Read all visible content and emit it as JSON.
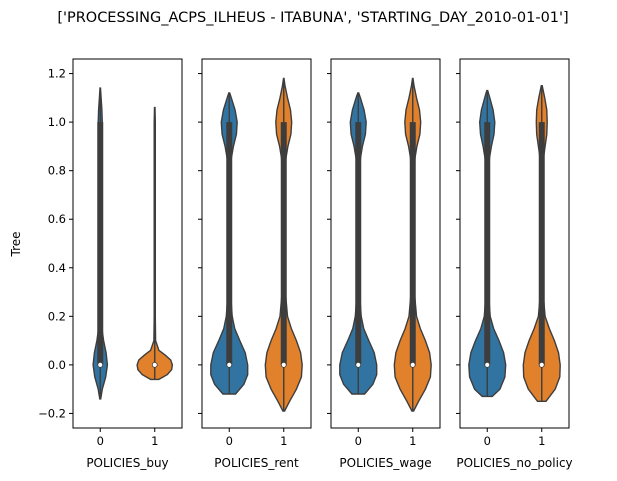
{
  "chart_data": {
    "type": "violin",
    "title": "['PROCESSING_ACPS_ILHEUS - ITABUNA', 'STARTING_DAY_2010-01-01']",
    "ylabel": "Tree",
    "ylim": [
      -0.26,
      1.26
    ],
    "yticks": [
      -0.2,
      0.0,
      0.2,
      0.4,
      0.6,
      0.8,
      1.0,
      1.2
    ],
    "ytick_labels": [
      "−0.2",
      "0.0",
      "0.2",
      "0.4",
      "0.6",
      "0.8",
      "1.0",
      "1.2"
    ],
    "categories": [
      "0",
      "1"
    ],
    "colors": [
      "#3274a1",
      "#e1812c"
    ],
    "panels": [
      {
        "xlabel": "POLICIES_buy",
        "violins": [
          {
            "category": "0",
            "min": -0.14,
            "max": 1.14,
            "median": 0.0,
            "q1": 0.0,
            "q3": 1.0,
            "density": [
              [
                -0.14,
                0.01
              ],
              [
                -0.1,
                0.05
              ],
              [
                -0.05,
                0.13
              ],
              [
                0.0,
                0.17
              ],
              [
                0.05,
                0.14
              ],
              [
                0.1,
                0.08
              ],
              [
                0.15,
                0.04
              ],
              [
                0.2,
                0.03
              ],
              [
                0.3,
                0.02
              ],
              [
                0.5,
                0.015
              ],
              [
                0.7,
                0.015
              ],
              [
                0.85,
                0.02
              ],
              [
                0.95,
                0.04
              ],
              [
                1.0,
                0.05
              ],
              [
                1.05,
                0.04
              ],
              [
                1.1,
                0.02
              ],
              [
                1.14,
                0.005
              ]
            ]
          },
          {
            "category": "1",
            "min": -0.06,
            "max": 1.06,
            "median": 0.0,
            "q1": 0.0,
            "q3": 0.0,
            "density": [
              [
                -0.06,
                0.1
              ],
              [
                -0.04,
                0.3
              ],
              [
                -0.02,
                0.4
              ],
              [
                0.0,
                0.42
              ],
              [
                0.02,
                0.38
              ],
              [
                0.04,
                0.25
              ],
              [
                0.06,
                0.1
              ],
              [
                0.1,
                0.02
              ],
              [
                0.2,
                0.012
              ],
              [
                0.5,
                0.012
              ],
              [
                0.8,
                0.012
              ],
              [
                1.0,
                0.014
              ],
              [
                1.06,
                0.005
              ]
            ]
          }
        ]
      },
      {
        "xlabel": "POLICIES_rent",
        "violins": [
          {
            "category": "0",
            "min": -0.12,
            "max": 1.12,
            "median": 0.0,
            "q1": 0.0,
            "q3": 1.0,
            "density": [
              [
                -0.12,
                0.15
              ],
              [
                -0.08,
                0.35
              ],
              [
                -0.04,
                0.44
              ],
              [
                0.0,
                0.44
              ],
              [
                0.05,
                0.38
              ],
              [
                0.1,
                0.25
              ],
              [
                0.15,
                0.13
              ],
              [
                0.2,
                0.07
              ],
              [
                0.3,
                0.03
              ],
              [
                0.5,
                0.02
              ],
              [
                0.7,
                0.02
              ],
              [
                0.85,
                0.05
              ],
              [
                0.9,
                0.1
              ],
              [
                0.95,
                0.17
              ],
              [
                1.0,
                0.19
              ],
              [
                1.05,
                0.14
              ],
              [
                1.1,
                0.05
              ],
              [
                1.12,
                0.01
              ]
            ]
          },
          {
            "category": "1",
            "min": -0.19,
            "max": 1.18,
            "median": 0.0,
            "q1": 0.0,
            "q3": 1.0,
            "density": [
              [
                -0.19,
                0.02
              ],
              [
                -0.15,
                0.14
              ],
              [
                -0.1,
                0.3
              ],
              [
                -0.05,
                0.42
              ],
              [
                0.0,
                0.44
              ],
              [
                0.05,
                0.4
              ],
              [
                0.1,
                0.3
              ],
              [
                0.15,
                0.18
              ],
              [
                0.2,
                0.09
              ],
              [
                0.3,
                0.04
              ],
              [
                0.5,
                0.03
              ],
              [
                0.7,
                0.03
              ],
              [
                0.85,
                0.05
              ],
              [
                0.9,
                0.1
              ],
              [
                0.95,
                0.17
              ],
              [
                1.0,
                0.19
              ],
              [
                1.05,
                0.16
              ],
              [
                1.1,
                0.09
              ],
              [
                1.15,
                0.03
              ],
              [
                1.18,
                0.005
              ]
            ]
          }
        ]
      },
      {
        "xlabel": "POLICIES_wage",
        "violins": [
          {
            "category": "0",
            "min": -0.12,
            "max": 1.12,
            "median": 0.0,
            "q1": 0.0,
            "q3": 1.0,
            "density": [
              [
                -0.12,
                0.15
              ],
              [
                -0.08,
                0.35
              ],
              [
                -0.04,
                0.44
              ],
              [
                0.0,
                0.44
              ],
              [
                0.05,
                0.38
              ],
              [
                0.1,
                0.25
              ],
              [
                0.15,
                0.13
              ],
              [
                0.2,
                0.07
              ],
              [
                0.3,
                0.03
              ],
              [
                0.5,
                0.02
              ],
              [
                0.7,
                0.02
              ],
              [
                0.85,
                0.05
              ],
              [
                0.9,
                0.1
              ],
              [
                0.95,
                0.17
              ],
              [
                1.0,
                0.19
              ],
              [
                1.05,
                0.14
              ],
              [
                1.1,
                0.05
              ],
              [
                1.12,
                0.01
              ]
            ]
          },
          {
            "category": "1",
            "min": -0.19,
            "max": 1.18,
            "median": 0.0,
            "q1": 0.0,
            "q3": 1.0,
            "density": [
              [
                -0.19,
                0.02
              ],
              [
                -0.15,
                0.14
              ],
              [
                -0.1,
                0.3
              ],
              [
                -0.05,
                0.42
              ],
              [
                0.0,
                0.44
              ],
              [
                0.05,
                0.4
              ],
              [
                0.1,
                0.3
              ],
              [
                0.15,
                0.18
              ],
              [
                0.2,
                0.09
              ],
              [
                0.3,
                0.04
              ],
              [
                0.5,
                0.03
              ],
              [
                0.7,
                0.03
              ],
              [
                0.85,
                0.05
              ],
              [
                0.9,
                0.1
              ],
              [
                0.95,
                0.17
              ],
              [
                1.0,
                0.19
              ],
              [
                1.05,
                0.16
              ],
              [
                1.1,
                0.09
              ],
              [
                1.15,
                0.03
              ],
              [
                1.18,
                0.005
              ]
            ]
          }
        ]
      },
      {
        "xlabel": "POLICIES_no_policy",
        "violins": [
          {
            "category": "0",
            "min": -0.13,
            "max": 1.13,
            "median": 0.0,
            "q1": 0.0,
            "q3": 1.0,
            "density": [
              [
                -0.13,
                0.12
              ],
              [
                -0.1,
                0.3
              ],
              [
                -0.05,
                0.42
              ],
              [
                0.0,
                0.44
              ],
              [
                0.05,
                0.39
              ],
              [
                0.1,
                0.28
              ],
              [
                0.15,
                0.15
              ],
              [
                0.2,
                0.07
              ],
              [
                0.3,
                0.03
              ],
              [
                0.5,
                0.02
              ],
              [
                0.7,
                0.02
              ],
              [
                0.85,
                0.05
              ],
              [
                0.9,
                0.1
              ],
              [
                0.95,
                0.16
              ],
              [
                1.0,
                0.18
              ],
              [
                1.05,
                0.14
              ],
              [
                1.1,
                0.06
              ],
              [
                1.13,
                0.01
              ]
            ]
          },
          {
            "category": "1",
            "min": -0.15,
            "max": 1.15,
            "median": 0.0,
            "q1": 0.0,
            "q3": 1.0,
            "density": [
              [
                -0.15,
                0.1
              ],
              [
                -0.1,
                0.32
              ],
              [
                -0.05,
                0.43
              ],
              [
                0.0,
                0.44
              ],
              [
                0.05,
                0.4
              ],
              [
                0.1,
                0.3
              ],
              [
                0.15,
                0.18
              ],
              [
                0.2,
                0.08
              ],
              [
                0.3,
                0.03
              ],
              [
                0.5,
                0.02
              ],
              [
                0.7,
                0.02
              ],
              [
                0.85,
                0.04
              ],
              [
                0.9,
                0.08
              ],
              [
                0.95,
                0.12
              ],
              [
                1.0,
                0.13
              ],
              [
                1.05,
                0.12
              ],
              [
                1.1,
                0.07
              ],
              [
                1.15,
                0.01
              ]
            ]
          }
        ]
      }
    ]
  }
}
